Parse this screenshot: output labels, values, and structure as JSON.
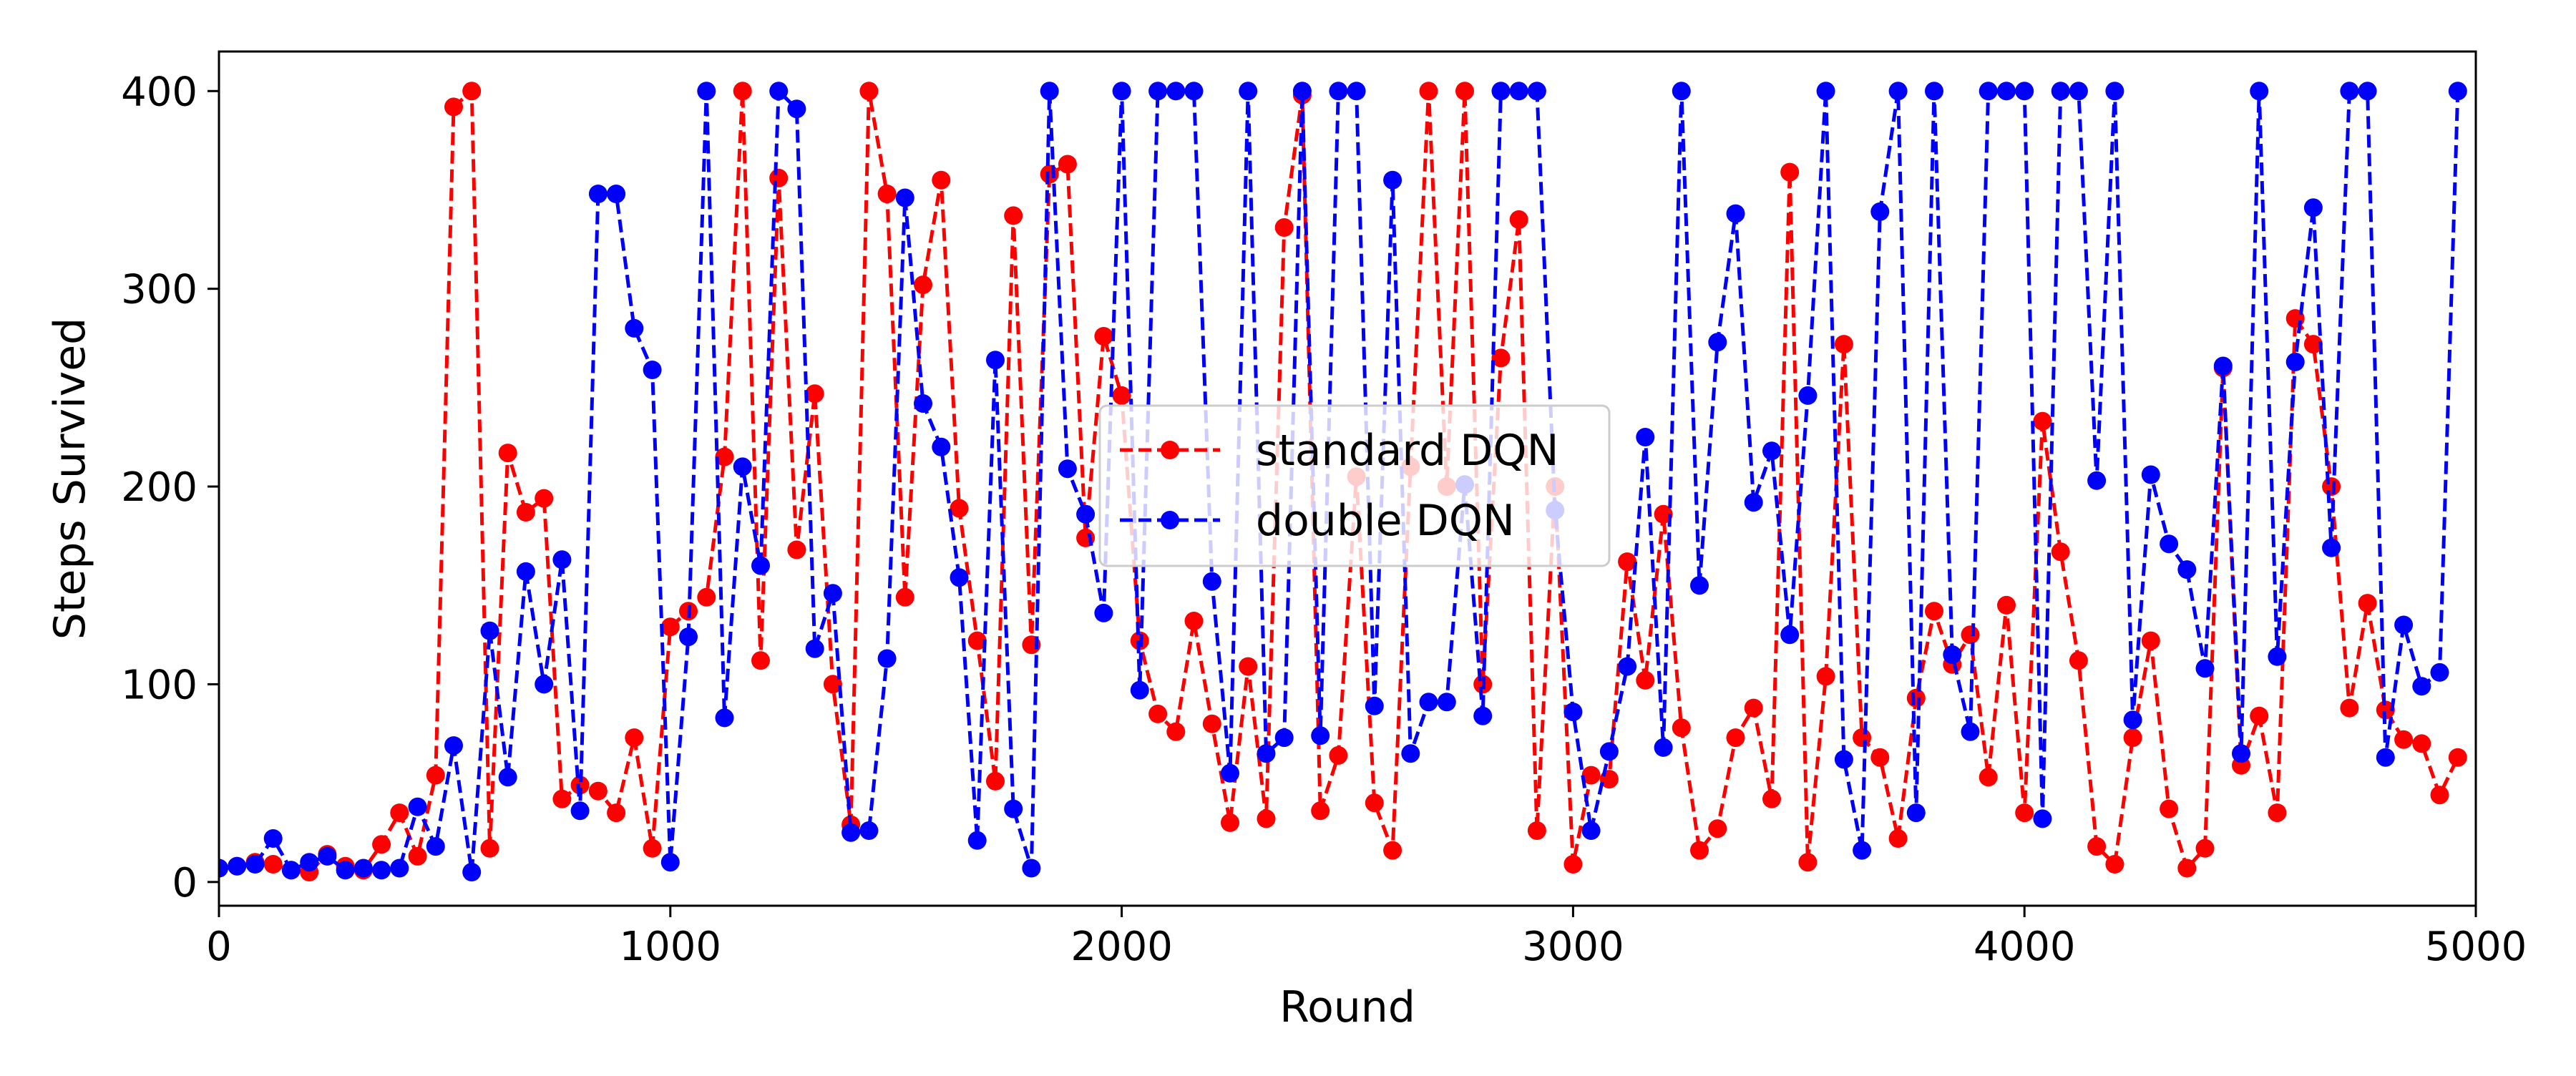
{
  "chart_data": {
    "type": "line",
    "title": "",
    "xlabel": "Round",
    "ylabel": "Steps Survived",
    "xlim": [
      0,
      5000
    ],
    "ylim": [
      -12,
      420
    ],
    "xticks": [
      0,
      1000,
      2000,
      3000,
      4000,
      5000
    ],
    "yticks": [
      0,
      100,
      200,
      300,
      400
    ],
    "grid": false,
    "legend_position": "center",
    "x": [
      0,
      40,
      80,
      120,
      160,
      200,
      240,
      280,
      320,
      360,
      400,
      440,
      480,
      520,
      560,
      600,
      640,
      680,
      720,
      760,
      800,
      840,
      880,
      920,
      960,
      1000,
      1040,
      1080,
      1120,
      1160,
      1200,
      1240,
      1280,
      1320,
      1360,
      1400,
      1440,
      1480,
      1520,
      1560,
      1600,
      1640,
      1680,
      1720,
      1760,
      1800,
      1840,
      1880,
      1920,
      1960,
      2000,
      2040,
      2080,
      2120,
      2160,
      2200,
      2240,
      2280,
      2320,
      2360,
      2400,
      2440,
      2480,
      2520,
      2560,
      2600,
      2640,
      2680,
      2720,
      2760,
      2800,
      2840,
      2880,
      2920,
      2960,
      3000,
      3040,
      3080,
      3120,
      3160,
      3200,
      3240,
      3280,
      3320,
      3360,
      3400,
      3440,
      3480,
      3520,
      3560,
      3600,
      3640,
      3680,
      3720,
      3760,
      3800,
      3840,
      3880,
      3920,
      3960,
      4000,
      4040,
      4080,
      4120,
      4160,
      4200,
      4240,
      4280,
      4320,
      4360,
      4400,
      4440,
      4480,
      4520,
      4560,
      4600,
      4640,
      4680,
      4720,
      4760,
      4800,
      4840,
      4880,
      4920,
      4960
    ],
    "series": [
      {
        "name": "standard DQN",
        "color": "#ff0000",
        "values": [
          7,
          8,
          10,
          9,
          6,
          5,
          14,
          8,
          6,
          19,
          35,
          13,
          54,
          392,
          400,
          17,
          217,
          187,
          194,
          42,
          49,
          46,
          35,
          73,
          17,
          129,
          137,
          144,
          215,
          400,
          112,
          356,
          168,
          247,
          100,
          29,
          400,
          348,
          144,
          302,
          355,
          189,
          122,
          51,
          337,
          120,
          358,
          363,
          174,
          276,
          246,
          122,
          85,
          76,
          132,
          80,
          30,
          109,
          32,
          331,
          398,
          36,
          64,
          205,
          40,
          16,
          210,
          400,
          200,
          400,
          100,
          265,
          335,
          26,
          200,
          9,
          54,
          52,
          162,
          102,
          186,
          78,
          16,
          27,
          73,
          88,
          42,
          359,
          10,
          104,
          272,
          73,
          63,
          22,
          93,
          137,
          110,
          125,
          53,
          140,
          35,
          233,
          167,
          112,
          18,
          9,
          73,
          122,
          37,
          7,
          17,
          260,
          59,
          84,
          35,
          285,
          272,
          200,
          88,
          141,
          87,
          72,
          70,
          44,
          63
        ]
      },
      {
        "name": "double DQN",
        "color": "#0000ff",
        "values": [
          7,
          8,
          9,
          22,
          6,
          10,
          13,
          6,
          7,
          6,
          7,
          38,
          18,
          69,
          5,
          127,
          53,
          157,
          100,
          163,
          36,
          348,
          348,
          280,
          259,
          10,
          124,
          400,
          83,
          210,
          160,
          400,
          391,
          118,
          146,
          25,
          26,
          113,
          346,
          242,
          220,
          154,
          21,
          264,
          37,
          7,
          400,
          209,
          186,
          136,
          400,
          97,
          400,
          400,
          400,
          152,
          55,
          400,
          65,
          73,
          400,
          74,
          400,
          400,
          89,
          355,
          65,
          91,
          91,
          201,
          84,
          400,
          400,
          400,
          188,
          86,
          26,
          66,
          109,
          225,
          68,
          400,
          150,
          273,
          338,
          192,
          218,
          125,
          246,
          400,
          62,
          16,
          339,
          400,
          35,
          400,
          115,
          76,
          400,
          400,
          400,
          32,
          400,
          400,
          203,
          400,
          82,
          206,
          171,
          158,
          108,
          261,
          65,
          400,
          114,
          263,
          341,
          169,
          400,
          400,
          63,
          130,
          99,
          106,
          400
        ]
      }
    ]
  }
}
